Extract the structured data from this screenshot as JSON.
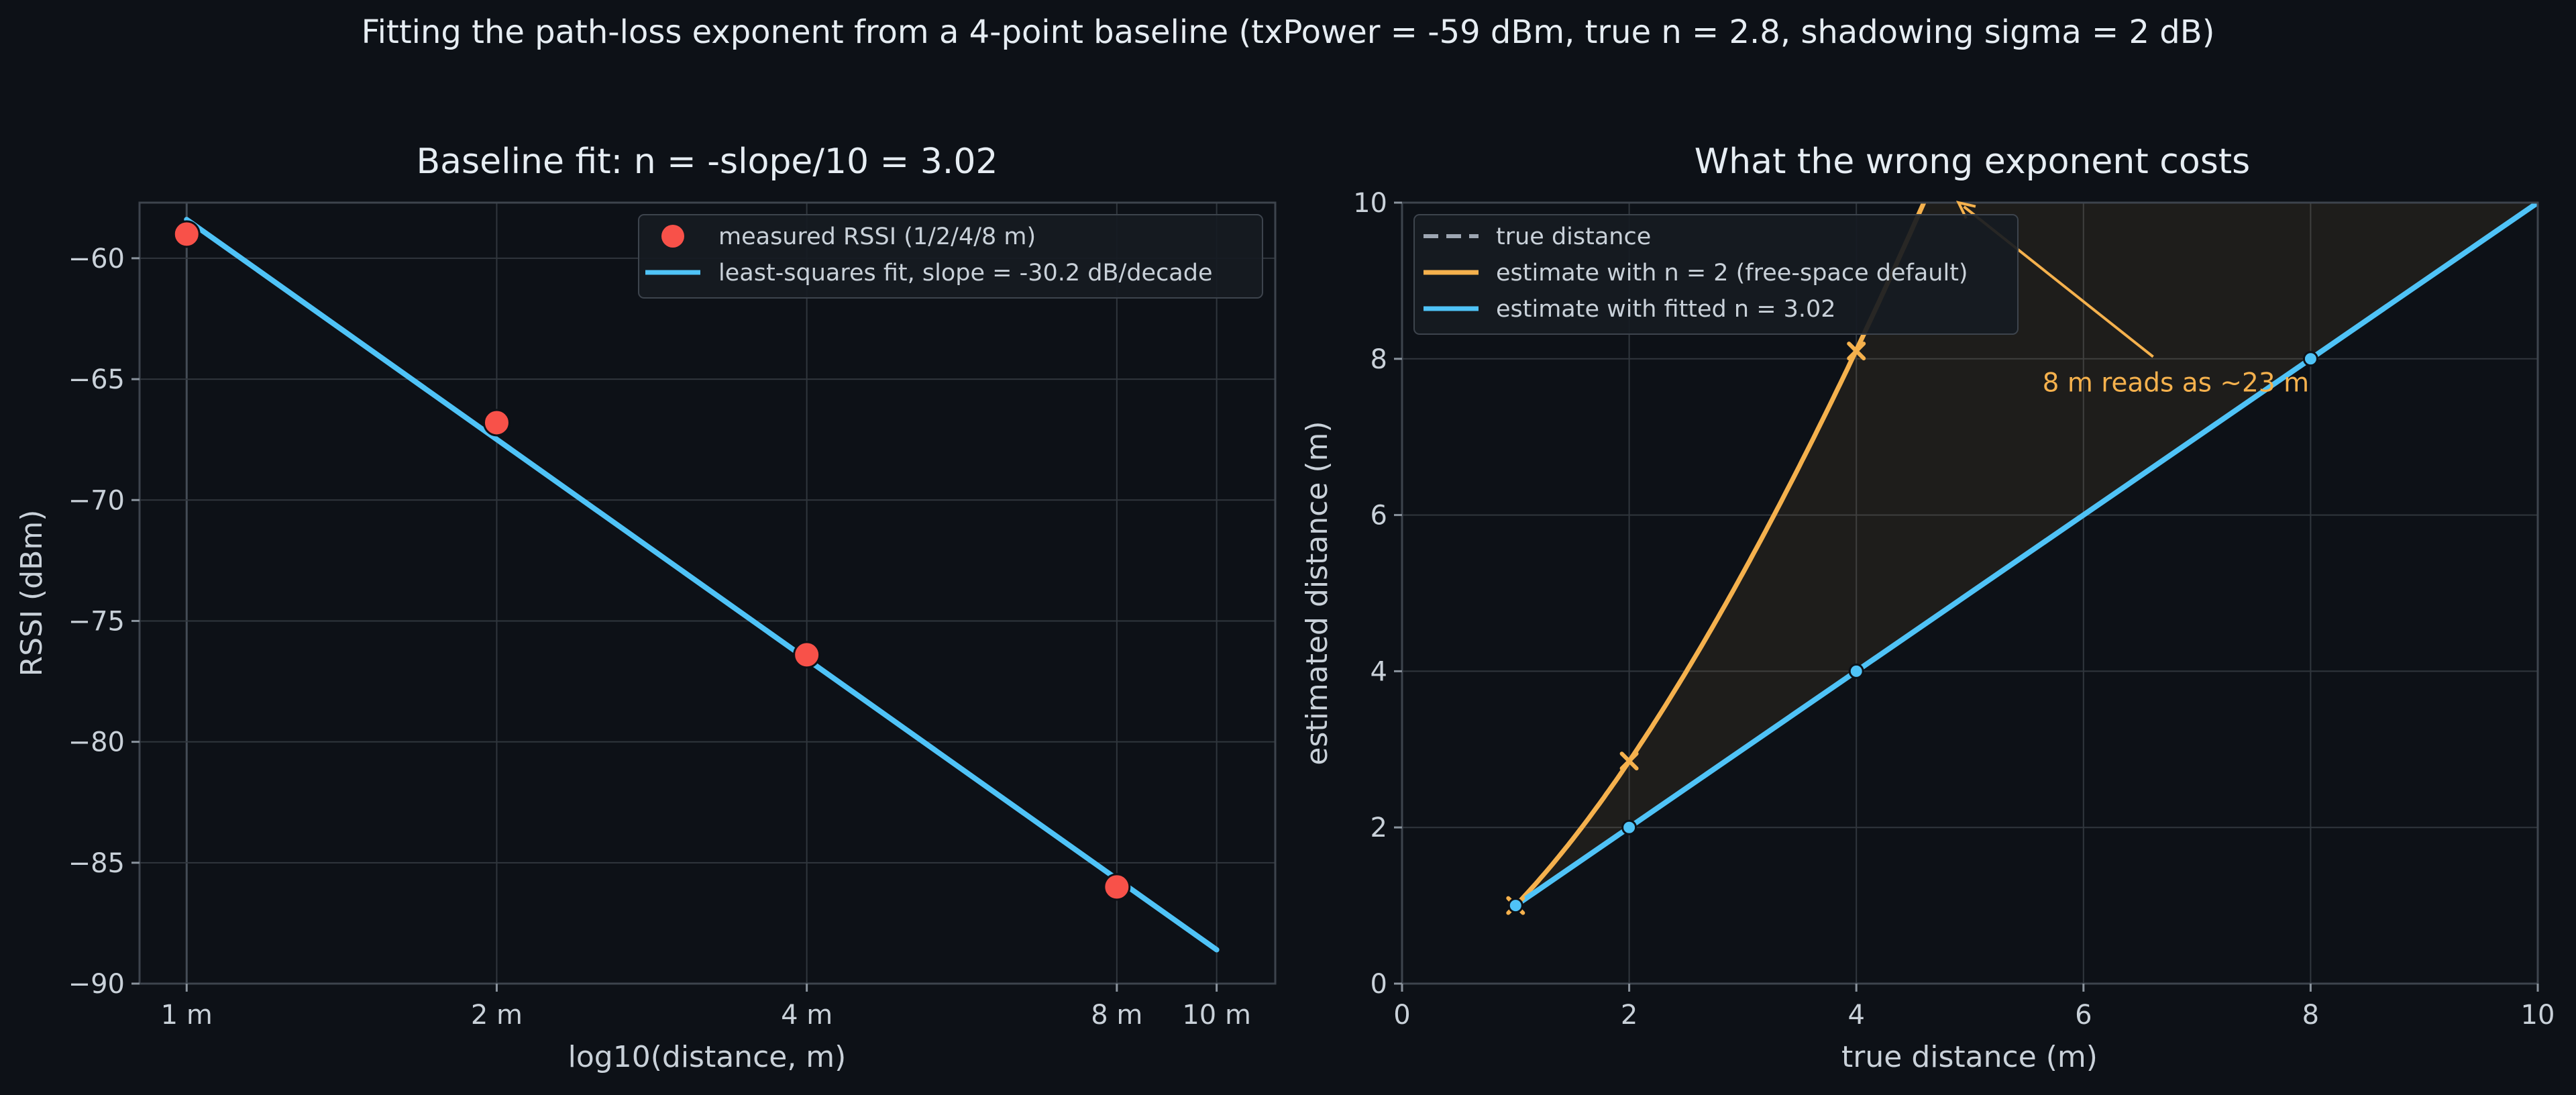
{
  "figure": {
    "suptitle": "Fitting the path-loss exponent from a 4-point baseline  (txPower = -59 dBm, true n = 2.8, shadowing sigma = 2 dB)"
  },
  "colors": {
    "background": "#0d1117",
    "measured": "#f85149",
    "fit_blue": "#4fc3f7",
    "orange": "#f5b14d",
    "true_gray": "#9ea7b3"
  },
  "chart_data": [
    {
      "type": "scatter",
      "title": "Baseline fit:  n = -slope/10 = 3.02",
      "xlabel": "log10(distance, m)",
      "ylabel": "RSSI (dBm)",
      "x_scale": "log10",
      "xlim": [
        0.9,
        11.4
      ],
      "ylim": [
        -90,
        -57.7
      ],
      "x_ticks": [
        1,
        2,
        4,
        8,
        10
      ],
      "x_tick_labels": [
        "1 m",
        "2 m",
        "4 m",
        "8 m",
        "10 m"
      ],
      "y_ticks": [
        -60,
        -65,
        -70,
        -75,
        -80,
        -85,
        -90
      ],
      "y_tick_labels": [
        "−60",
        "−65",
        "−70",
        "−75",
        "−80",
        "−85",
        "−90"
      ],
      "grid": true,
      "legend_position": "top-right",
      "series": [
        {
          "name": "measured RSSI (1/2/4/8 m)",
          "kind": "scatter",
          "x": [
            1,
            2,
            4,
            8
          ],
          "y": [
            -59.0,
            -66.8,
            -76.4,
            -86.0
          ]
        },
        {
          "name": "least-squares fit, slope = -30.2 dB/decade",
          "kind": "line",
          "x": [
            1,
            10
          ],
          "y": [
            -58.4,
            -88.6
          ]
        }
      ]
    },
    {
      "type": "line",
      "title": "What the wrong exponent costs",
      "xlabel": "true distance (m)",
      "ylabel": "estimated distance (m)",
      "xlim": [
        0,
        10
      ],
      "ylim": [
        0,
        10
      ],
      "x_ticks": [
        0,
        2,
        4,
        6,
        8,
        10
      ],
      "x_tick_labels": [
        "0",
        "2",
        "4",
        "6",
        "8",
        "10"
      ],
      "y_ticks": [
        0,
        2,
        4,
        6,
        8,
        10
      ],
      "y_tick_labels": [
        "0",
        "2",
        "4",
        "6",
        "8",
        "10"
      ],
      "grid": true,
      "legend_position": "top-left",
      "series": [
        {
          "name": "true distance",
          "style": "dashed",
          "x": [
            1,
            10
          ],
          "y": [
            1,
            10
          ]
        },
        {
          "name": "estimate with n = 2 (free-space default)",
          "style": "solid",
          "exponent": 1.51,
          "x": [
            1,
            2,
            3,
            4,
            4.7
          ],
          "y": [
            1,
            2.85,
            5.25,
            8.1,
            10.35
          ],
          "markers_x": [
            1,
            2,
            4
          ],
          "markers_y": [
            1,
            2.85,
            8.1
          ]
        },
        {
          "name": "estimate with fitted n = 3.02",
          "style": "solid",
          "x": [
            1,
            2,
            4,
            8,
            10
          ],
          "y": [
            1,
            2,
            4,
            8,
            10
          ],
          "markers_x": [
            1,
            2,
            4,
            8
          ],
          "markers_y": [
            1,
            2,
            4,
            8
          ]
        }
      ],
      "annotations": [
        {
          "text": "8 m reads as ~23 m",
          "arrow_to": [
            4.9,
            10
          ],
          "text_at": [
            5.55,
            7.7
          ]
        }
      ]
    }
  ]
}
